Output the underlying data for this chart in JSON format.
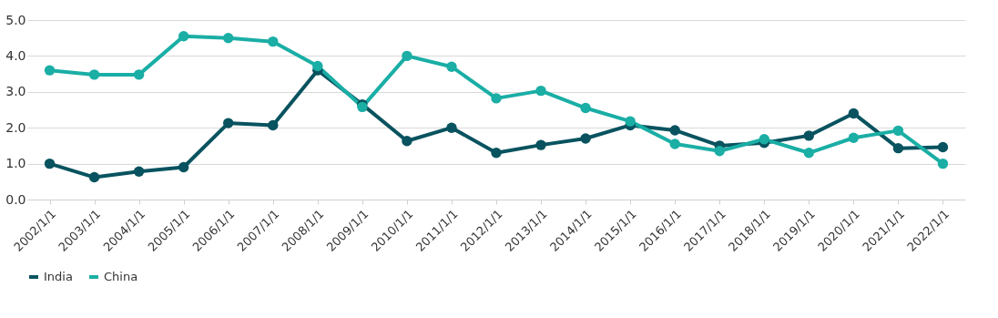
{
  "chart_data": {
    "type": "line",
    "categories": [
      "2002/1/1",
      "2003/1/1",
      "2004/1/1",
      "2005/1/1",
      "2006/1/1",
      "2007/1/1",
      "2008/1/1",
      "2009/1/1",
      "2010/1/1",
      "2011/1/1",
      "2012/1/1",
      "2013/1/1",
      "2014/1/1",
      "2015/1/1",
      "2016/1/1",
      "2017/1/1",
      "2018/1/1",
      "2019/1/1",
      "2020/1/1",
      "2021/1/1",
      "2022/1/1"
    ],
    "series": [
      {
        "name": "India",
        "color": "#08535f",
        "values": [
          1.0,
          0.62,
          0.78,
          0.9,
          2.13,
          2.07,
          3.6,
          2.65,
          1.63,
          2.0,
          1.3,
          1.52,
          1.7,
          2.07,
          1.93,
          1.5,
          1.58,
          1.78,
          2.4,
          1.43,
          1.46
        ]
      },
      {
        "name": "China",
        "color": "#1aaea5",
        "values": [
          3.6,
          3.48,
          3.48,
          4.55,
          4.5,
          4.4,
          3.72,
          2.58,
          4.0,
          3.7,
          2.82,
          3.03,
          2.55,
          2.18,
          1.55,
          1.35,
          1.68,
          1.3,
          1.72,
          1.92,
          1.0
        ]
      }
    ],
    "ylim": [
      0,
      5
    ],
    "yticks": [
      {
        "value": 0,
        "label": "0.0"
      },
      {
        "value": 1,
        "label": "1.0"
      },
      {
        "value": 2,
        "label": "2.0"
      },
      {
        "value": 3,
        "label": "3.0"
      },
      {
        "value": 4,
        "label": "4.0"
      },
      {
        "value": 5,
        "label": "5.0"
      }
    ],
    "grid": "y",
    "legend": "bottom",
    "marker": "circle",
    "line_style": "solid"
  }
}
